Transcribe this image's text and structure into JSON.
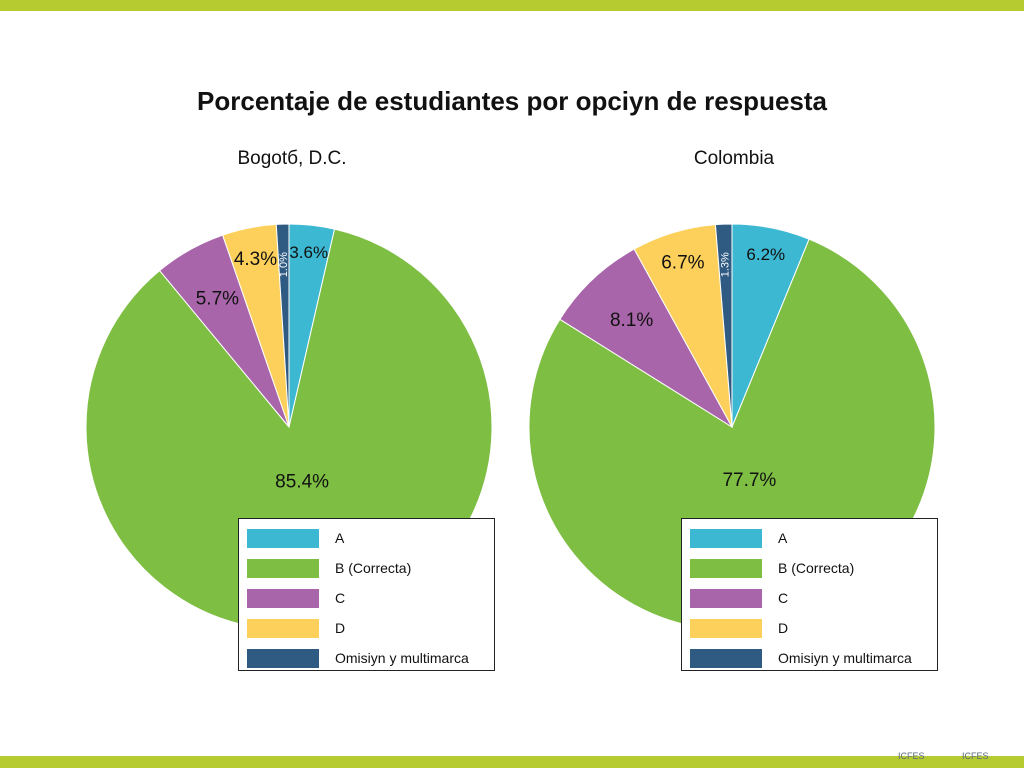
{
  "title": "Porcentaje de estudiantes por opciyn de respuesta",
  "colors": {
    "band": "#b5cb2f",
    "A": "#3cb8d2",
    "B": "#7dbe43",
    "C": "#a865a9",
    "D": "#fcd05a",
    "O": "#2f5a82"
  },
  "legend_labels": [
    "A",
    "B (Correcta)",
    "C",
    "D",
    "Omisiyn y multimarca"
  ],
  "chart_data": [
    {
      "type": "pie",
      "title": "Bogotб, D.C.",
      "slices": [
        {
          "label": "A",
          "value": 3.6,
          "text": "3.6%"
        },
        {
          "label": "B (Correcta)",
          "value": 85.4,
          "text": "85.4%"
        },
        {
          "label": "C",
          "value": 5.7,
          "text": "5.7%"
        },
        {
          "label": "D",
          "value": 4.3,
          "text": "4.3%"
        },
        {
          "label": "Omisiyn y multimarca",
          "value": 1.0,
          "text": "1.0%"
        }
      ],
      "legend": "bottom-right"
    },
    {
      "type": "pie",
      "title": "Colombia",
      "slices": [
        {
          "label": "A",
          "value": 6.2,
          "text": "6.2%"
        },
        {
          "label": "B (Correcta)",
          "value": 77.7,
          "text": "77.7%"
        },
        {
          "label": "C",
          "value": 8.1,
          "text": "8.1%"
        },
        {
          "label": "D",
          "value": 6.7,
          "text": "6.7%"
        },
        {
          "label": "Omisiyn y multimarca",
          "value": 1.3,
          "text": "1.3%"
        }
      ],
      "legend": "bottom-right"
    }
  ],
  "footer_marks": [
    "ICFES",
    "ICFES"
  ]
}
